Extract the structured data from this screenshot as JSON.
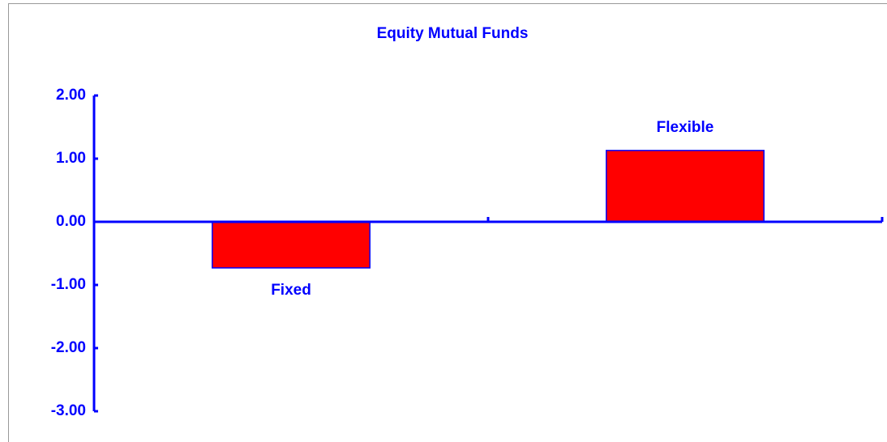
{
  "chart_data": {
    "type": "bar",
    "title": "Equity Mutual Funds",
    "categories": [
      "Fixed",
      "Flexible"
    ],
    "values": [
      -0.73,
      1.13
    ],
    "color": "#ff0000",
    "ylim": [
      -3,
      2
    ],
    "yticks": [
      {
        "value": 2,
        "label": "2.00"
      },
      {
        "value": 1,
        "label": "1.00"
      },
      {
        "value": 0,
        "label": "0.00"
      },
      {
        "value": -1,
        "label": "-1.00"
      },
      {
        "value": -2,
        "label": "-2.00"
      },
      {
        "value": -3,
        "label": "-3.00"
      }
    ],
    "grid": false
  }
}
